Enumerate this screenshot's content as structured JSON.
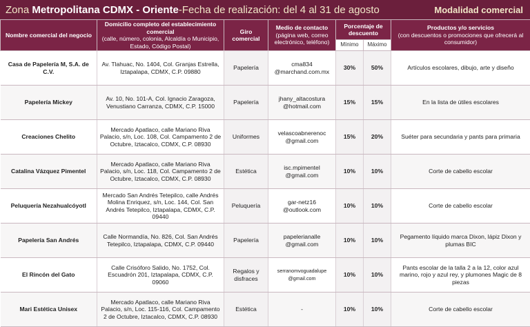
{
  "header": {
    "zone_prefix": "Zona ",
    "zone_name": "Metropolitana CDMX - Oriente",
    "date_text": "-Fecha de realización: del 4  al 31 de agosto",
    "modality": "Modalidad comercial"
  },
  "columns": {
    "name": "Nombre comercial del negocio",
    "address": "Domicilio completo del establecimiento comercial",
    "address_detail": "(calle, número, colonia, Alcaldía o Municipio, Estado, Código Postal)",
    "giro": "Giro comercial",
    "contact": "Medio de contacto",
    "contact_detail": "(página web, correo electrónico, teléfono)",
    "discount": "Porcentaje de descuento",
    "min": "Mínimo",
    "max": "Máximo",
    "products": "Productos y/o servicios",
    "products_detail": "(con descuentos o promociones que ofrecerá al consumidor)"
  },
  "rows": [
    {
      "name": "Casa de Papelería M, S.A. de C.V.",
      "address": "Av. Tlahuac, No. 1404, Col. Granjas Estrella, Iztapalapa, CDMX, C.P. 09880",
      "giro": "Papelería",
      "contact": "cma834 @marchand.com.mx",
      "min": "30%",
      "max": "50%",
      "products": "Artículos escolares, dibujo, arte y diseño"
    },
    {
      "name": "Papelería Mickey",
      "address": "Av. 10, No. 101-A, Col. Ignacio Zaragoza, Venustiano Carranza, CDMX, C.P. 15000",
      "giro": "Papelería",
      "contact": "jhany_altacostura @hotmail.com",
      "min": "15%",
      "max": "15%",
      "products": "En la lista de útiles escolares"
    },
    {
      "name": "Creaciones Chelito",
      "address": "Mercado Apatlaco, calle Mariano Riva Palacio, s/n, Loc. 108, Col. Campamento 2 de Octubre, Iztacalco, CDMX, C.P. 08930",
      "giro": "Uniformes",
      "contact": "velascoabnerenoc @gmail.com",
      "min": "15%",
      "max": "20%",
      "products": "Suéter para secundaria y pants para primaria"
    },
    {
      "name": "Catalina Vázquez Pimentel",
      "address": "Mercado Apatlaco, calle Mariano Riva Palacio, s/n, Loc. 118, Col. Campamento 2 de Octubre, Iztacalco, CDMX, C.P. 08930",
      "giro": "Estética",
      "contact": "isc.mpimentel @gmail.com",
      "min": "10%",
      "max": "10%",
      "products": "Corte de cabello escolar"
    },
    {
      "name": "Peluquería Nezahualcóyotl",
      "address": "Mercado San Andrés Tetepilco, calle Andrés Molina Enriquez, s/n, Loc. 144, Col. San Andrés Tetepilco, Iztapalapa, CDMX, C.P. 09440",
      "giro": "Peluquería",
      "contact": "gar-netz16 @outlook.com",
      "min": "10%",
      "max": "10%",
      "products": "Corte de cabello escolar"
    },
    {
      "name": "Papelería San Andrés",
      "address": "Calle Normandía, No. 826, Col. San Andrés Tetepilco, Iztapalapa, CDMX, C.P. 09440",
      "giro": "Papelería",
      "contact": "papelerianalle @gmail.com",
      "min": "10%",
      "max": "10%",
      "products": "Pegamento líquido marca Dixon, lápiz Dixon y plumas BIC"
    },
    {
      "name": "El Rincón del Gato",
      "address": "Calle Crisóforo Salido, No. 1752, Col. Escuadrón 201, Iztapalapa, CDMX, C.P. 09060",
      "giro": "Regalos y disfraces",
      "contact": "serranomvoguadalupe @gmail.com",
      "min": "10%",
      "max": "10%",
      "products": "Pants escolar de la talla 2 a la 12, color azul marino, rojo y azul rey, y plumones Magic de 8 piezas"
    },
    {
      "name": "Mari Estética Unisex",
      "address": "Mercado Apatlaco, calle Mariano Riva Palacio, s/n, Loc. 115-116, Col. Campamento 2 de Octubre, Iztacalco, CDMX, C.P. 08930",
      "giro": "Estética",
      "contact": "-",
      "min": "10%",
      "max": "10%",
      "products": "Corte de cabello escolar"
    }
  ]
}
